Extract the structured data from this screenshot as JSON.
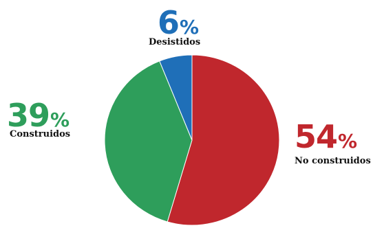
{
  "chart_data": {
    "type": "pie",
    "title": "",
    "slices": [
      {
        "label": "No construidos",
        "value": 54,
        "display": "54",
        "unit": "%",
        "color": "#c0272d"
      },
      {
        "label": "Construidos",
        "value": 39,
        "display": "39",
        "unit": "%",
        "color": "#2e9e5b"
      },
      {
        "label": "Desistidos",
        "value": 6,
        "display": "6",
        "unit": "%",
        "color": "#1f6fb8"
      }
    ],
    "start": "top",
    "direction": "clockwise",
    "legend": "none"
  }
}
